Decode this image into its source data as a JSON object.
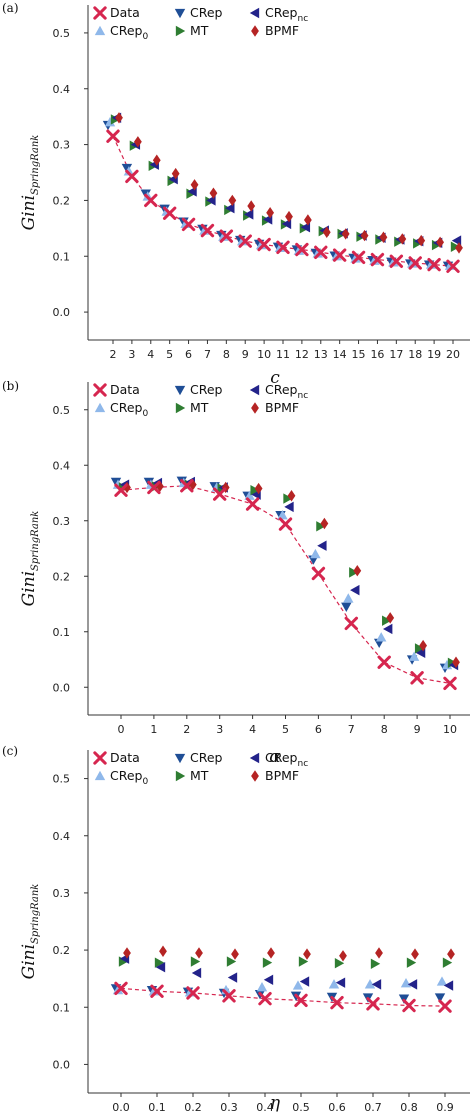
{
  "colors": {
    "Data": "#d6264f",
    "CRep": "#1f4e96",
    "CRep0": "#8fb8ea",
    "MT": "#2f7d32",
    "CRepnc": "#23238a",
    "BPMF": "#b52424",
    "axis": "#333333"
  },
  "legend": {
    "data": "Data",
    "crep": "CRep",
    "crep_nc_base": "CRep",
    "crep_nc_sub": "nc",
    "crep0_base": "CRep",
    "crep0_sub": "0",
    "mt": "MT",
    "bpmf": "BPMF"
  },
  "ylabel": {
    "main": "Gini",
    "sub": "SpringRank"
  },
  "chart_data": [
    {
      "panel": "(a)",
      "type": "scatter",
      "xlabel": "c",
      "ylim": [
        -0.05,
        0.55
      ],
      "yticks": [
        "0.0",
        "0.1",
        "0.2",
        "0.3",
        "0.4",
        "0.5"
      ],
      "x": [
        2,
        3,
        4,
        5,
        6,
        7,
        8,
        9,
        10,
        11,
        12,
        13,
        14,
        15,
        16,
        17,
        18,
        19,
        20
      ],
      "xticks": [
        "2",
        "3",
        "4",
        "5",
        "6",
        "7",
        "8",
        "9",
        "10",
        "11",
        "12",
        "13",
        "14",
        "15",
        "16",
        "17",
        "18",
        "19",
        "20"
      ],
      "series": [
        {
          "name": "Data",
          "marker": "x",
          "values": [
            0.315,
            0.243,
            0.2,
            0.177,
            0.157,
            0.146,
            0.136,
            0.127,
            0.121,
            0.116,
            0.112,
            0.107,
            0.102,
            0.098,
            0.094,
            0.091,
            0.088,
            0.085,
            0.082
          ]
        },
        {
          "name": "CRep",
          "marker": "tri_down",
          "values": [
            0.335,
            0.258,
            0.212,
            0.185,
            0.162,
            0.149,
            0.138,
            0.129,
            0.122,
            0.117,
            0.112,
            0.106,
            0.101,
            0.097,
            0.093,
            0.09,
            0.087,
            0.085,
            0.083
          ]
        },
        {
          "name": "CRep0",
          "marker": "tri_up",
          "values": [
            0.34,
            0.252,
            0.207,
            0.18,
            0.158,
            0.146,
            0.135,
            0.127,
            0.12,
            0.115,
            0.11,
            0.105,
            0.1,
            0.096,
            0.092,
            0.089,
            0.087,
            0.085,
            0.083
          ]
        },
        {
          "name": "MT",
          "marker": "tri_right",
          "values": [
            0.345,
            0.298,
            0.262,
            0.235,
            0.212,
            0.198,
            0.183,
            0.173,
            0.164,
            0.157,
            0.15,
            0.145,
            0.14,
            0.135,
            0.13,
            0.126,
            0.123,
            0.12,
            0.117
          ]
        },
        {
          "name": "CRepnc",
          "marker": "tri_left",
          "values": [
            0.348,
            0.3,
            0.264,
            0.238,
            0.216,
            0.2,
            0.186,
            0.175,
            0.166,
            0.158,
            0.152,
            0.146,
            0.141,
            0.137,
            0.133,
            0.13,
            0.127,
            0.124,
            0.128
          ]
        },
        {
          "name": "BPMF",
          "marker": "diamond",
          "values": [
            0.348,
            0.305,
            0.272,
            0.248,
            0.228,
            0.213,
            0.2,
            0.19,
            0.178,
            0.171,
            0.165,
            0.143,
            0.14,
            0.137,
            0.134,
            0.131,
            0.128,
            0.125,
            0.115
          ]
        }
      ]
    },
    {
      "panel": "(b)",
      "type": "scatter",
      "xlabel": "α",
      "ylim": [
        -0.05,
        0.55
      ],
      "yticks": [
        "0.0",
        "0.1",
        "0.2",
        "0.3",
        "0.4",
        "0.5"
      ],
      "x": [
        0,
        1,
        2,
        3,
        4,
        5,
        6,
        7,
        8,
        9,
        10
      ],
      "xticks": [
        "0",
        "1",
        "2",
        "3",
        "4",
        "5",
        "6",
        "7",
        "8",
        "9",
        "10"
      ],
      "series": [
        {
          "name": "Data",
          "marker": "x",
          "values": [
            0.355,
            0.36,
            0.363,
            0.348,
            0.33,
            0.294,
            0.205,
            0.115,
            0.045,
            0.017,
            0.007
          ]
        },
        {
          "name": "CRep",
          "marker": "tri_down",
          "values": [
            0.37,
            0.37,
            0.372,
            0.362,
            0.345,
            0.31,
            0.23,
            0.145,
            0.08,
            0.05,
            0.035
          ]
        },
        {
          "name": "CRep0",
          "marker": "tri_up",
          "values": [
            0.365,
            0.365,
            0.368,
            0.36,
            0.345,
            0.31,
            0.24,
            0.16,
            0.09,
            0.055,
            0.04
          ]
        },
        {
          "name": "MT",
          "marker": "tri_right",
          "values": [
            0.36,
            0.362,
            0.365,
            0.358,
            0.355,
            0.34,
            0.29,
            0.207,
            0.12,
            0.07,
            0.044
          ]
        },
        {
          "name": "CRepnc",
          "marker": "tri_left",
          "values": [
            0.365,
            0.368,
            0.37,
            0.36,
            0.347,
            0.325,
            0.255,
            0.175,
            0.105,
            0.062,
            0.04
          ]
        },
        {
          "name": "BPMF",
          "marker": "diamond",
          "values": [
            0.36,
            0.362,
            0.365,
            0.36,
            0.358,
            0.345,
            0.295,
            0.21,
            0.125,
            0.075,
            0.045
          ]
        }
      ]
    },
    {
      "panel": "(c)",
      "type": "scatter",
      "xlabel": "η",
      "ylim": [
        -0.05,
        0.55
      ],
      "yticks": [
        "0.0",
        "0.1",
        "0.2",
        "0.3",
        "0.4",
        "0.5"
      ],
      "x": [
        0.0,
        0.1,
        0.2,
        0.3,
        0.4,
        0.5,
        0.6,
        0.7,
        0.8,
        0.9
      ],
      "xticks": [
        "0.0",
        "0.1",
        "0.2",
        "0.3",
        "0.4",
        "0.5",
        "0.6",
        "0.7",
        "0.8",
        "0.9"
      ],
      "series": [
        {
          "name": "Data",
          "marker": "x",
          "values": [
            0.133,
            0.128,
            0.125,
            0.12,
            0.115,
            0.112,
            0.108,
            0.106,
            0.103,
            0.102
          ]
        },
        {
          "name": "CRep",
          "marker": "tri_down",
          "values": [
            0.133,
            0.13,
            0.127,
            0.125,
            0.123,
            0.12,
            0.118,
            0.117,
            0.115,
            0.117
          ]
        },
        {
          "name": "CRep0",
          "marker": "tri_up",
          "values": [
            0.13,
            0.128,
            0.126,
            0.13,
            0.135,
            0.138,
            0.14,
            0.14,
            0.142,
            0.145
          ]
        },
        {
          "name": "MT",
          "marker": "tri_right",
          "values": [
            0.18,
            0.178,
            0.18,
            0.18,
            0.178,
            0.18,
            0.177,
            0.176,
            0.178,
            0.178
          ]
        },
        {
          "name": "CRepnc",
          "marker": "tri_left",
          "values": [
            0.185,
            0.17,
            0.16,
            0.152,
            0.148,
            0.145,
            0.143,
            0.14,
            0.14,
            0.138
          ]
        },
        {
          "name": "BPMF",
          "marker": "diamond",
          "values": [
            0.195,
            0.198,
            0.195,
            0.193,
            0.195,
            0.193,
            0.19,
            0.195,
            0.193,
            0.193
          ]
        }
      ]
    }
  ]
}
